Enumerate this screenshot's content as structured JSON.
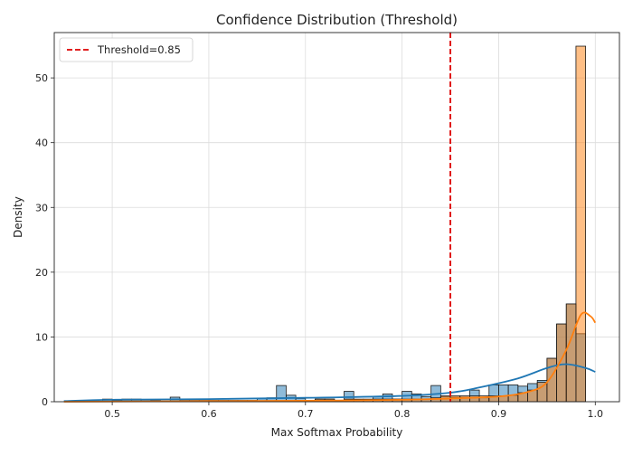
{
  "chart_data": {
    "type": "histogram",
    "title": "Confidence Distribution (Threshold)",
    "xlabel": "Max Softmax Probability",
    "ylabel": "Density",
    "xlim": [
      0.44,
      1.025
    ],
    "ylim": [
      0,
      57
    ],
    "xticks": [
      0.5,
      0.6,
      0.7,
      0.8,
      0.9,
      1.0
    ],
    "xtick_labels": [
      "0.5",
      "0.6",
      "0.7",
      "0.8",
      "0.9",
      "1.0"
    ],
    "yticks": [
      0,
      10,
      20,
      30,
      40,
      50
    ],
    "ytick_labels": [
      "0",
      "10",
      "20",
      "30",
      "40",
      "50"
    ],
    "grid": true,
    "legend_position": "top-left",
    "threshold": {
      "value": 0.85,
      "label": "Threshold=0.85",
      "color": "#dd0000",
      "style": "dashed"
    },
    "bin_edges_start": 0.45,
    "bin_width": 0.01,
    "series": [
      {
        "color": "#1f77b4",
        "values": [
          0,
          0,
          0,
          0,
          0.4,
          0.2,
          0.4,
          0.4,
          0.3,
          0.2,
          0,
          0.7,
          0.2,
          0.2,
          0.2,
          0.2,
          0.2,
          0.2,
          0.2,
          0.2,
          0.5,
          0.6,
          2.5,
          1.0,
          0.5,
          0.2,
          0.4,
          0.4,
          0.2,
          1.6,
          0.4,
          0.2,
          0.8,
          1.2,
          0.4,
          1.6,
          1.2,
          0.8,
          2.5,
          0.8,
          0.7,
          0.7,
          1.8,
          0.6,
          2.6,
          2.6,
          2.6,
          2.4,
          2.8,
          3.3,
          6.7,
          12.0,
          15.1,
          10.5,
          0
        ],
        "kde": [
          [
            0.45,
            0.1
          ],
          [
            0.5,
            0.3
          ],
          [
            0.6,
            0.4
          ],
          [
            0.7,
            0.6
          ],
          [
            0.8,
            0.9
          ],
          [
            0.85,
            1.4
          ],
          [
            0.88,
            2.2
          ],
          [
            0.92,
            3.6
          ],
          [
            0.95,
            5.2
          ],
          [
            0.97,
            5.8
          ],
          [
            0.99,
            5.2
          ],
          [
            1.0,
            4.6
          ]
        ]
      },
      {
        "color": "#ff7f0e",
        "values": [
          0,
          0,
          0,
          0,
          0,
          0,
          0.1,
          0.1,
          0.1,
          0.1,
          0.1,
          0.1,
          0.1,
          0.1,
          0.1,
          0.1,
          0.1,
          0.1,
          0.1,
          0.1,
          0.1,
          0.1,
          0.1,
          0.1,
          0.2,
          0.2,
          0.4,
          0.4,
          0.1,
          0.4,
          0.2,
          0.4,
          0.4,
          0.4,
          0.4,
          0.4,
          0.4,
          0.4,
          0.6,
          0.9,
          0.9,
          0.9,
          0.9,
          0.9,
          0.9,
          0.9,
          1.0,
          1.4,
          1.8,
          3.0,
          6.7,
          12.0,
          15.1,
          54.9,
          0
        ],
        "kde": [
          [
            0.45,
            0.0
          ],
          [
            0.6,
            0.1
          ],
          [
            0.7,
            0.15
          ],
          [
            0.8,
            0.3
          ],
          [
            0.85,
            0.5
          ],
          [
            0.9,
            0.8
          ],
          [
            0.93,
            1.5
          ],
          [
            0.95,
            3.0
          ],
          [
            0.97,
            8.0
          ],
          [
            0.985,
            13.4
          ],
          [
            0.995,
            13.2
          ],
          [
            1.0,
            12.2
          ]
        ]
      }
    ]
  }
}
